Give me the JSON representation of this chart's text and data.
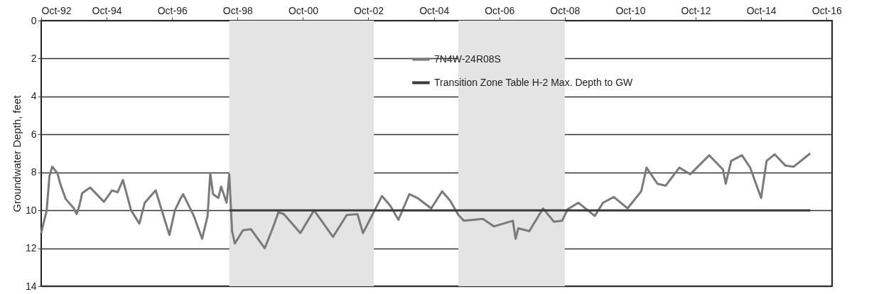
{
  "chart_data": {
    "type": "line",
    "ylabel": "Groundwater Depth, feet",
    "xlim": [
      "1992-10-01",
      "2016-12-01"
    ],
    "xticks": [
      {
        "value": "1992-10",
        "label": "Oct-92"
      },
      {
        "value": "1994-10",
        "label": "Oct-94"
      },
      {
        "value": "1996-10",
        "label": "Oct-96"
      },
      {
        "value": "1998-10",
        "label": "Oct-98"
      },
      {
        "value": "2000-10",
        "label": "Oct-00"
      },
      {
        "value": "2002-10",
        "label": "Oct-02"
      },
      {
        "value": "2004-10",
        "label": "Oct-04"
      },
      {
        "value": "2006-10",
        "label": "Oct-06"
      },
      {
        "value": "2008-10",
        "label": "Oct-08"
      },
      {
        "value": "2010-10",
        "label": "Oct-10"
      },
      {
        "value": "2012-10",
        "label": "Oct-12"
      },
      {
        "value": "2014-10",
        "label": "Oct-14"
      },
      {
        "value": "2016-10",
        "label": "Oct-16"
      }
    ],
    "ylim": [
      14,
      0
    ],
    "yticks": [
      0,
      2,
      4,
      6,
      8,
      10,
      12,
      14
    ],
    "grid": "y",
    "legend": "top",
    "bands": [
      {
        "axis": "x",
        "from": "1998-07",
        "to": "2002-12",
        "color": "#e4e4e4"
      },
      {
        "axis": "x",
        "from": "2005-07",
        "to": "2008-10",
        "color": "#e4e4e4"
      }
    ],
    "series": [
      {
        "name": "7N4W-24R08S",
        "color": "#7a7a7a",
        "x": [
          "1992-10",
          "1992-12",
          "1993-01",
          "1993-02",
          "1993-04",
          "1993-05",
          "1993-07",
          "1993-10",
          "1993-11",
          "1993-12",
          "1994-01",
          "1994-04",
          "1994-09",
          "1994-12",
          "1995-02",
          "1995-04",
          "1995-07",
          "1995-10",
          "1995-12",
          "1996-04",
          "1996-06",
          "1996-09",
          "1996-11",
          "1997-01",
          "1997-02",
          "1997-06",
          "1997-09",
          "1997-11",
          "1997-12",
          "1998-01",
          "1998-03",
          "1998-04",
          "1998-06",
          "1998-07",
          "1998-08",
          "1998-09",
          "1998-12",
          "1999-03",
          "1999-08",
          "1999-11",
          "2000-01",
          "2000-03",
          "2000-09",
          "2001-02",
          "2001-09",
          "2002-02",
          "2002-06",
          "2002-08",
          "2003-03",
          "2003-06",
          "2003-09",
          "2004-01",
          "2004-04",
          "2004-09",
          "2005-01",
          "2005-04",
          "2005-07",
          "2005-09",
          "2006-04",
          "2006-08",
          "2007-03",
          "2007-04",
          "2007-05",
          "2007-09",
          "2008-02",
          "2008-06",
          "2008-09",
          "2008-11",
          "2009-03",
          "2009-09",
          "2009-12",
          "2010-04",
          "2010-09",
          "2011-02",
          "2011-04",
          "2011-08",
          "2011-11",
          "2012-04",
          "2012-08",
          "2013-03",
          "2013-08",
          "2013-09",
          "2013-11",
          "2014-03",
          "2014-06",
          "2014-10",
          "2014-12",
          "2015-03",
          "2015-07",
          "2015-10",
          "2016-04"
        ],
        "values": [
          11.2,
          10.0,
          8.2,
          7.7,
          8.05,
          8.6,
          9.4,
          9.9,
          10.2,
          9.75,
          9.1,
          8.8,
          9.55,
          8.95,
          9.05,
          8.4,
          10.0,
          10.7,
          9.6,
          8.95,
          9.9,
          11.3,
          10.0,
          9.4,
          9.15,
          10.3,
          11.5,
          10.3,
          8.05,
          9.15,
          9.35,
          8.75,
          9.6,
          8.1,
          11.1,
          11.75,
          11.05,
          11.0,
          12.0,
          10.9,
          10.1,
          10.2,
          11.2,
          10.0,
          11.4,
          10.25,
          10.2,
          11.2,
          9.25,
          9.75,
          10.5,
          9.15,
          9.35,
          9.9,
          9.0,
          9.5,
          10.25,
          10.55,
          10.45,
          10.85,
          10.55,
          11.5,
          10.95,
          11.1,
          9.9,
          10.6,
          10.55,
          9.95,
          9.6,
          10.3,
          9.6,
          9.3,
          9.9,
          9.0,
          7.75,
          8.6,
          8.7,
          7.75,
          8.1,
          7.1,
          7.85,
          8.6,
          7.4,
          7.1,
          7.75,
          9.35,
          7.4,
          7.05,
          7.65,
          7.7,
          7.0
        ]
      },
      {
        "name": "Transition Zone Table H-2 Max. Depth to GW",
        "color": "#3a3a3a",
        "x": [
          "1998-07",
          "2016-04"
        ],
        "values": [
          10,
          10
        ]
      }
    ]
  }
}
